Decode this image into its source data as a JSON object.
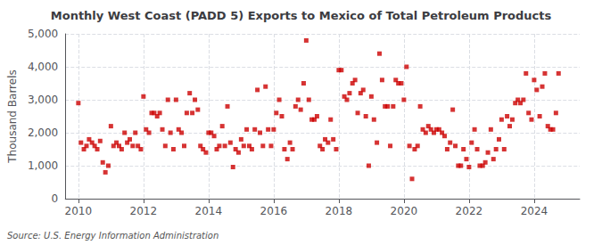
{
  "chart_data": {
    "type": "scatter",
    "title": "Monthly West Coast (PADD 5) Exports to Mexico of Total Petroleum Products",
    "ylabel": "Thousand Barrels",
    "annotations": [
      "Source: U.S. Energy Information Administration"
    ],
    "color": "#cc0000",
    "marker": "square",
    "grid": true,
    "xlim": [
      2009.6,
      2025.4
    ],
    "xticks": [
      2010,
      2012,
      2014,
      2016,
      2018,
      2020,
      2022,
      2024
    ],
    "ylim": [
      0,
      5000
    ],
    "yticks": [
      0,
      {
        "value": 1000,
        "label": "1,000"
      },
      {
        "value": 2000,
        "label": "2,000"
      },
      {
        "value": 3000,
        "label": "3,000"
      },
      {
        "value": 4000,
        "label": "4,000"
      },
      {
        "value": 5000,
        "label": "5,000"
      }
    ],
    "x": [
      2010.0,
      2010.08,
      2010.17,
      2010.25,
      2010.33,
      2010.42,
      2010.5,
      2010.58,
      2010.67,
      2010.75,
      2010.83,
      2010.92,
      2011.0,
      2011.08,
      2011.17,
      2011.25,
      2011.33,
      2011.42,
      2011.5,
      2011.58,
      2011.67,
      2011.75,
      2011.83,
      2011.92,
      2012.0,
      2012.08,
      2012.17,
      2012.25,
      2012.33,
      2012.42,
      2012.5,
      2012.58,
      2012.67,
      2012.75,
      2012.83,
      2012.92,
      2013.0,
      2013.08,
      2013.17,
      2013.25,
      2013.33,
      2013.42,
      2013.5,
      2013.58,
      2013.67,
      2013.75,
      2013.83,
      2013.92,
      2014.0,
      2014.08,
      2014.17,
      2014.25,
      2014.33,
      2014.42,
      2014.5,
      2014.58,
      2014.67,
      2014.75,
      2014.83,
      2014.92,
      2015.0,
      2015.08,
      2015.17,
      2015.25,
      2015.33,
      2015.42,
      2015.5,
      2015.58,
      2015.67,
      2015.75,
      2015.83,
      2015.92,
      2016.0,
      2016.08,
      2016.17,
      2016.25,
      2016.33,
      2016.42,
      2016.5,
      2016.58,
      2016.67,
      2016.75,
      2016.83,
      2016.92,
      2017.0,
      2017.08,
      2017.17,
      2017.25,
      2017.33,
      2017.42,
      2017.5,
      2017.58,
      2017.67,
      2017.75,
      2017.83,
      2017.92,
      2018.0,
      2018.08,
      2018.17,
      2018.25,
      2018.33,
      2018.42,
      2018.5,
      2018.58,
      2018.67,
      2018.75,
      2018.83,
      2018.92,
      2019.0,
      2019.08,
      2019.17,
      2019.25,
      2019.33,
      2019.42,
      2019.5,
      2019.58,
      2019.67,
      2019.75,
      2019.83,
      2019.92,
      2020.0,
      2020.08,
      2020.17,
      2020.25,
      2020.33,
      2020.42,
      2020.5,
      2020.58,
      2020.67,
      2020.75,
      2020.83,
      2020.92,
      2021.0,
      2021.08,
      2021.17,
      2021.25,
      2021.33,
      2021.42,
      2021.5,
      2021.58,
      2021.67,
      2021.75,
      2021.83,
      2021.92,
      2022.0,
      2022.08,
      2022.17,
      2022.25,
      2022.33,
      2022.42,
      2022.5,
      2022.58,
      2022.67,
      2022.75,
      2022.83,
      2022.92,
      2023.0,
      2023.08,
      2023.17,
      2023.25,
      2023.33,
      2023.42,
      2023.5,
      2023.58,
      2023.67,
      2023.75,
      2023.83,
      2023.92,
      2024.0,
      2024.08,
      2024.17,
      2024.25,
      2024.33,
      2024.42,
      2024.5,
      2024.58,
      2024.67,
      2024.75
    ],
    "values": [
      2900,
      1700,
      1500,
      1600,
      1800,
      1700,
      1600,
      1500,
      1750,
      1100,
      800,
      1000,
      2200,
      1600,
      1700,
      1600,
      1500,
      2000,
      1700,
      1800,
      1600,
      2000,
      1600,
      1500,
      3100,
      2100,
      2000,
      2600,
      2600,
      2500,
      2600,
      2100,
      1600,
      3000,
      2000,
      1500,
      3000,
      2100,
      2000,
      1600,
      2600,
      3200,
      2600,
      3000,
      2700,
      1600,
      1500,
      1400,
      2000,
      2000,
      1900,
      1500,
      1600,
      2200,
      1600,
      2800,
      1700,
      960,
      1500,
      1400,
      1800,
      1600,
      2100,
      1600,
      1500,
      2100,
      3300,
      2000,
      1600,
      3400,
      2100,
      1600,
      2100,
      2600,
      3000,
      2500,
      1500,
      1200,
      1700,
      1500,
      2800,
      3000,
      2700,
      3500,
      4800,
      3000,
      2400,
      2400,
      2500,
      1600,
      1500,
      1800,
      1700,
      2400,
      1800,
      1500,
      3900,
      3900,
      3100,
      3000,
      3200,
      3500,
      3600,
      2600,
      3200,
      3300,
      2500,
      1000,
      3100,
      2400,
      1700,
      4400,
      3600,
      2800,
      2800,
      1600,
      2800,
      3600,
      3500,
      3500,
      3000,
      4000,
      1600,
      600,
      1500,
      1600,
      2800,
      2100,
      2000,
      2200,
      2100,
      2000,
      2100,
      2100,
      2000,
      1900,
      1500,
      1700,
      2700,
      1600,
      1000,
      1000,
      1500,
      1200,
      960,
      1700,
      2100,
      1500,
      1000,
      1000,
      1100,
      1400,
      2100,
      1200,
      1500,
      1800,
      2400,
      1500,
      2500,
      2200,
      2400,
      2900,
      3000,
      2900,
      3000,
      3800,
      2600,
      2400,
      3600,
      3300,
      2500,
      3400,
      3800,
      2200,
      2100,
      2100,
      2600,
      3800
    ]
  }
}
